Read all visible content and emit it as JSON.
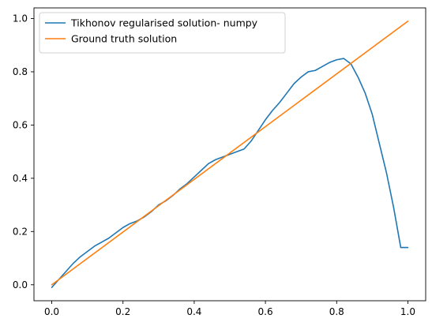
{
  "chart_data": {
    "type": "line",
    "title": "",
    "xlabel": "",
    "ylabel": "",
    "xlim": [
      -0.05,
      1.05
    ],
    "ylim": [
      -0.06,
      1.04
    ],
    "xticks": [
      0.0,
      0.2,
      0.4,
      0.6,
      0.8,
      1.0
    ],
    "xtick_labels": [
      "0.0",
      "0.2",
      "0.4",
      "0.6",
      "0.8",
      "1.0"
    ],
    "yticks": [
      0.0,
      0.2,
      0.4,
      0.6,
      0.8,
      1.0
    ],
    "ytick_labels": [
      "0.0",
      "0.2",
      "0.4",
      "0.6",
      "0.8",
      "1.0"
    ],
    "grid": false,
    "legend_position": "upper-left",
    "series": [
      {
        "name": "Tikhonov regularised solution- numpy",
        "color": "#1f77b4",
        "x": [
          0.0,
          0.02,
          0.04,
          0.06,
          0.08,
          0.1,
          0.12,
          0.14,
          0.16,
          0.18,
          0.2,
          0.22,
          0.24,
          0.26,
          0.28,
          0.3,
          0.32,
          0.34,
          0.36,
          0.38,
          0.4,
          0.42,
          0.44,
          0.46,
          0.48,
          0.5,
          0.52,
          0.54,
          0.56,
          0.58,
          0.6,
          0.62,
          0.64,
          0.66,
          0.68,
          0.7,
          0.72,
          0.74,
          0.76,
          0.78,
          0.8,
          0.82,
          0.84,
          0.86,
          0.88,
          0.9,
          0.92,
          0.94,
          0.96,
          0.98,
          1.0
        ],
        "y": [
          -0.01,
          0.02,
          0.05,
          0.08,
          0.105,
          0.125,
          0.145,
          0.16,
          0.175,
          0.195,
          0.215,
          0.23,
          0.24,
          0.255,
          0.275,
          0.3,
          0.315,
          0.335,
          0.36,
          0.38,
          0.405,
          0.43,
          0.455,
          0.47,
          0.48,
          0.49,
          0.5,
          0.51,
          0.54,
          0.58,
          0.62,
          0.655,
          0.685,
          0.72,
          0.755,
          0.78,
          0.8,
          0.805,
          0.82,
          0.835,
          0.845,
          0.85,
          0.83,
          0.78,
          0.72,
          0.64,
          0.53,
          0.42,
          0.29,
          0.14,
          0.14
        ]
      },
      {
        "name": "Ground truth solution",
        "color": "#ff7f0e",
        "x": [
          0.0,
          1.0
        ],
        "y": [
          0.0,
          0.99
        ]
      }
    ]
  }
}
